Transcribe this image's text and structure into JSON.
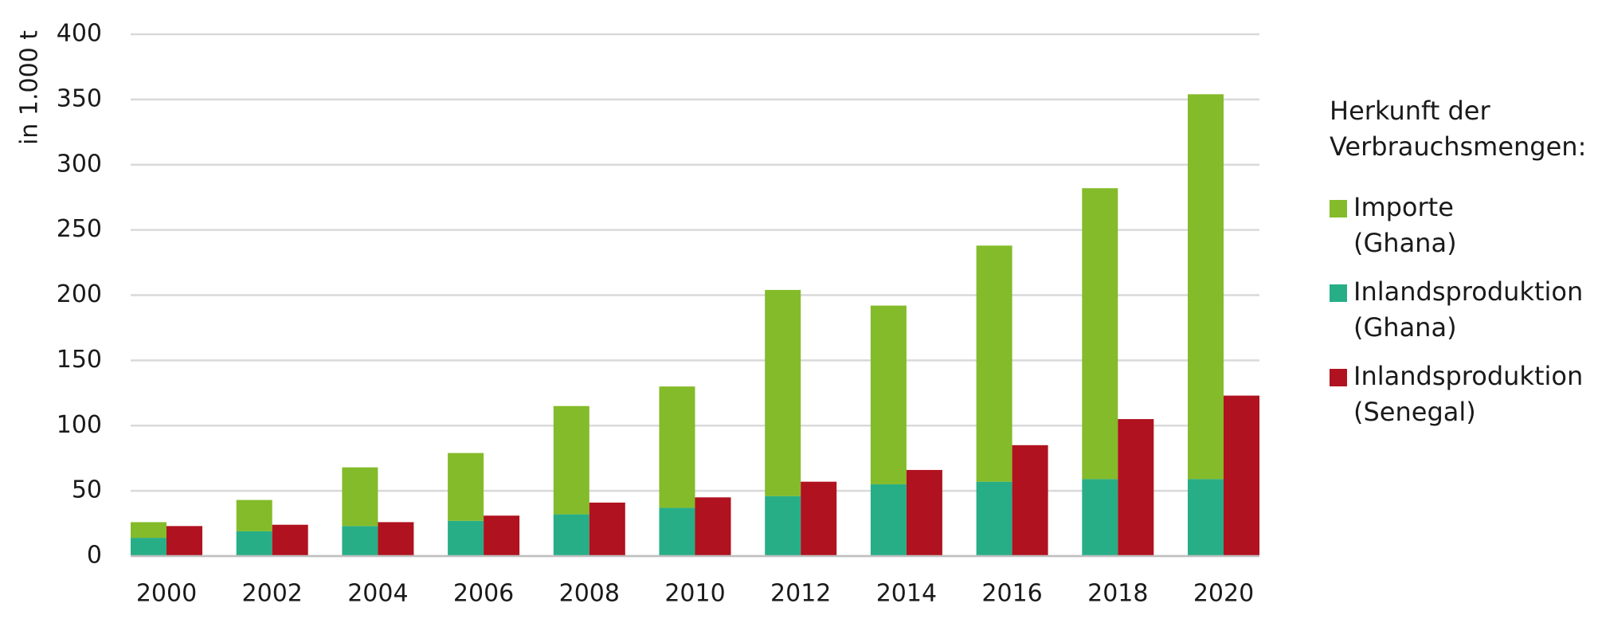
{
  "chart_data": {
    "type": "bar",
    "y_label": "in 1.000 t",
    "legend_title": "Herkunft der\nVerbrauchsmengen:",
    "categories": [
      "2000",
      "2002",
      "2004",
      "2006",
      "2008",
      "2010",
      "2012",
      "2014",
      "2016",
      "2018",
      "2020"
    ],
    "series": [
      {
        "name": "Importe\n(Ghana)",
        "color": "#84bb2a",
        "values": [
          12,
          24,
          45,
          52,
          83,
          93,
          158,
          137,
          181,
          223,
          295
        ]
      },
      {
        "name": "Inlandsproduktion\n(Ghana)",
        "color": "#27ae87",
        "values": [
          14,
          19,
          23,
          27,
          32,
          37,
          46,
          55,
          57,
          59,
          59
        ]
      },
      {
        "name": "Inlandsproduktion\n(Senegal)",
        "color": "#b0121f",
        "values": [
          23,
          24,
          26,
          31,
          41,
          45,
          57,
          66,
          85,
          105,
          123
        ]
      }
    ],
    "ylim": [
      0,
      400
    ],
    "yticks": [
      0,
      50,
      100,
      150,
      200,
      250,
      300,
      350,
      400
    ],
    "grid": true,
    "legend": "right"
  }
}
